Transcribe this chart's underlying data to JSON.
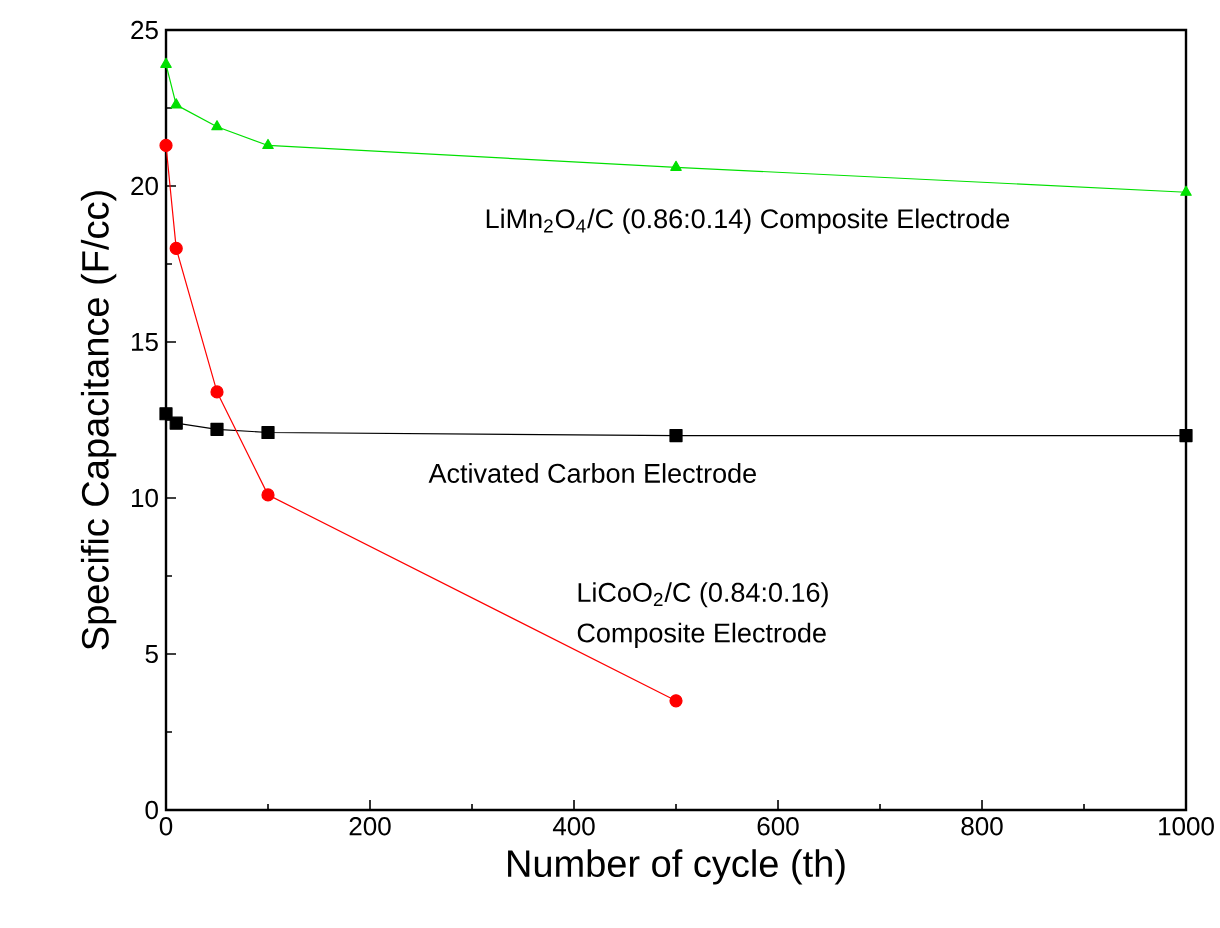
{
  "chart_data": {
    "type": "line",
    "xlabel": "Number of cycle (th)",
    "ylabel": "Specific Capacitance (F/cc)",
    "xlim": [
      0,
      1000
    ],
    "ylim": [
      0,
      25
    ],
    "xticks": [
      0,
      200,
      400,
      600,
      800,
      1000
    ],
    "yticks": [
      0,
      5,
      10,
      15,
      20,
      25
    ],
    "grid": false,
    "series": [
      {
        "color": "#00e000",
        "marker": "triangle",
        "x": [
          0,
          10,
          50,
          100,
          500,
          1000
        ],
        "values": [
          23.9,
          22.6,
          21.9,
          21.3,
          20.6,
          19.8
        ]
      },
      {
        "color": "#000000",
        "marker": "square",
        "x": [
          0,
          10,
          50,
          100,
          500,
          1000
        ],
        "values": [
          12.7,
          12.4,
          12.2,
          12.1,
          12.0,
          12.0
        ]
      },
      {
        "color": "#ff0000",
        "marker": "circle",
        "x": [
          0,
          10,
          50,
          100,
          500
        ],
        "values": [
          21.3,
          18.0,
          13.4,
          10.1,
          3.5
        ]
      }
    ],
    "annotations": [
      "LiMn$_{2}$O$_{4}$/C (0.86:0.14) Composite Electrode",
      "Activated Carbon Electrode",
      "LiCoO$_{2}$/C (0.84:0.16)",
      "Composite Electrode"
    ]
  }
}
